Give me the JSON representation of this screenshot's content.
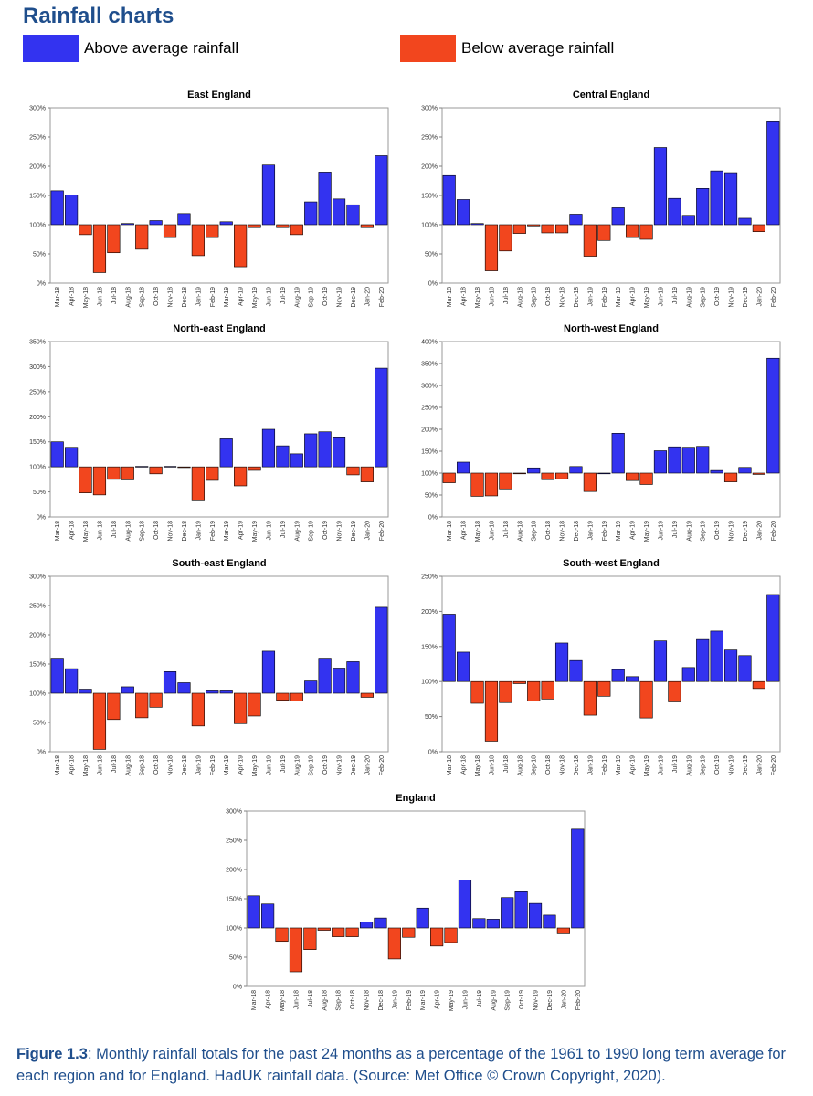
{
  "page_title": "Rainfall charts",
  "legend": {
    "above": {
      "label": "Above average rainfall",
      "color": "#3333f0"
    },
    "below": {
      "label": "Below average rainfall",
      "color": "#f2461e"
    }
  },
  "caption": {
    "prefix": "Figure 1.3",
    "text": ": Monthly rainfall totals for the past 24 months as a percentage of the 1961 to 1990 long term average for each region and for England. HadUK rainfall data. (Source: Met Office © Crown Copyright, 2020)."
  },
  "chart_data": [
    {
      "type": "bar",
      "title": "East England",
      "baseline": 100,
      "ylim": [
        0,
        300
      ],
      "yticks": [
        "0%",
        "50%",
        "100%",
        "150%",
        "200%",
        "250%",
        "300%"
      ],
      "categories": [
        "Mar-18",
        "Apr-18",
        "May-18",
        "Jun-18",
        "Jul-18",
        "Aug-18",
        "Sep-18",
        "Oct-18",
        "Nov-18",
        "Dec-18",
        "Jan-19",
        "Feb-19",
        "Mar-19",
        "Apr-19",
        "May-19",
        "Jun-19",
        "Jul-19",
        "Aug-19",
        "Sep-19",
        "Oct-19",
        "Nov-19",
        "Dec-19",
        "Jan-20",
        "Feb-20"
      ],
      "values": [
        158,
        151,
        83,
        18,
        52,
        102,
        58,
        107,
        78,
        119,
        47,
        78,
        105,
        28,
        95,
        202,
        95,
        83,
        139,
        190,
        144,
        134,
        95,
        218
      ]
    },
    {
      "type": "bar",
      "title": "Central England",
      "baseline": 100,
      "ylim": [
        0,
        300
      ],
      "yticks": [
        "0%",
        "50%",
        "100%",
        "150%",
        "200%",
        "250%",
        "300%"
      ],
      "categories": [
        "Mar-18",
        "Apr-18",
        "May-18",
        "Jun-18",
        "Jul-18",
        "Aug-18",
        "Sep-18",
        "Oct-18",
        "Nov-18",
        "Dec-18",
        "Jan-19",
        "Feb-19",
        "Mar-19",
        "Apr-19",
        "May-19",
        "Jun-19",
        "Jul-19",
        "Aug-19",
        "Sep-19",
        "Oct-19",
        "Nov-19",
        "Dec-19",
        "Jan-20",
        "Feb-20"
      ],
      "values": [
        184,
        143,
        102,
        21,
        55,
        85,
        98,
        86,
        86,
        118,
        46,
        73,
        129,
        78,
        75,
        232,
        145,
        116,
        162,
        192,
        189,
        111,
        88,
        276
      ]
    },
    {
      "type": "bar",
      "title": "North-east England",
      "baseline": 100,
      "ylim": [
        0,
        350
      ],
      "yticks": [
        "0%",
        "50%",
        "100%",
        "150%",
        "200%",
        "250%",
        "300%",
        "350%"
      ],
      "categories": [
        "Mar-18",
        "Apr-18",
        "May-18",
        "Jun-18",
        "Jul-18",
        "Aug-18",
        "Sep-18",
        "Oct-18",
        "Nov-18",
        "Dec-18",
        "Jan-19",
        "Feb-19",
        "Mar-19",
        "Apr-19",
        "May-19",
        "Jun-19",
        "Jul-19",
        "Aug-19",
        "Sep-19",
        "Oct-19",
        "Nov-19",
        "Dec-19",
        "Jan-20",
        "Feb-20"
      ],
      "values": [
        150,
        139,
        48,
        44,
        75,
        74,
        101,
        86,
        101,
        99,
        34,
        73,
        156,
        62,
        93,
        175,
        142,
        126,
        166,
        170,
        158,
        84,
        70,
        297
      ]
    },
    {
      "type": "bar",
      "title": "North-west England",
      "baseline": 100,
      "ylim": [
        0,
        400
      ],
      "yticks": [
        "0%",
        "50%",
        "100%",
        "150%",
        "200%",
        "250%",
        "300%",
        "350%",
        "400%"
      ],
      "categories": [
        "Mar-18",
        "Apr-18",
        "May-18",
        "Jun-18",
        "Jul-18",
        "Aug-18",
        "Sep-18",
        "Oct-18",
        "Nov-18",
        "Dec-18",
        "Jan-19",
        "Feb-19",
        "Mar-19",
        "Apr-19",
        "May-19",
        "Jun-19",
        "Jul-19",
        "Aug-19",
        "Sep-19",
        "Oct-19",
        "Nov-19",
        "Dec-19",
        "Jan-20",
        "Feb-20"
      ],
      "values": [
        78,
        125,
        47,
        48,
        64,
        99,
        112,
        85,
        87,
        115,
        58,
        100,
        191,
        83,
        74,
        151,
        160,
        159,
        161,
        106,
        80,
        113,
        97,
        362
      ]
    },
    {
      "type": "bar",
      "title": "South-east England",
      "baseline": 100,
      "ylim": [
        0,
        300
      ],
      "yticks": [
        "0%",
        "50%",
        "100%",
        "150%",
        "200%",
        "250%",
        "300%"
      ],
      "categories": [
        "Mar-18",
        "Apr-18",
        "May-18",
        "Jun-18",
        "Jul-18",
        "Aug-18",
        "Sep-18",
        "Oct-18",
        "Nov-18",
        "Dec-18",
        "Jan-19",
        "Feb-19",
        "Mar-19",
        "Apr-19",
        "May-19",
        "Jun-19",
        "Jul-19",
        "Aug-19",
        "Sep-19",
        "Oct-19",
        "Nov-19",
        "Dec-19",
        "Jan-20",
        "Feb-20"
      ],
      "values": [
        160,
        142,
        107,
        4,
        55,
        111,
        58,
        76,
        137,
        118,
        44,
        104,
        104,
        48,
        61,
        172,
        88,
        87,
        121,
        160,
        143,
        154,
        93,
        247
      ]
    },
    {
      "type": "bar",
      "title": "South-west England",
      "baseline": 100,
      "ylim": [
        0,
        250
      ],
      "yticks": [
        "0%",
        "50%",
        "100%",
        "150%",
        "200%",
        "250%"
      ],
      "categories": [
        "Mar-18",
        "Apr-18",
        "May-18",
        "Jun-18",
        "Jul-18",
        "Aug-18",
        "Sep-18",
        "Oct-18",
        "Nov-18",
        "Dec-18",
        "Jan-19",
        "Feb-19",
        "Mar-19",
        "Apr-19",
        "May-19",
        "Jun-19",
        "Jul-19",
        "Aug-19",
        "Sep-19",
        "Oct-19",
        "Nov-19",
        "Dec-19",
        "Jan-20",
        "Feb-20"
      ],
      "values": [
        196,
        142,
        69,
        15,
        70,
        97,
        72,
        75,
        155,
        130,
        52,
        79,
        117,
        107,
        48,
        158,
        71,
        120,
        160,
        172,
        145,
        137,
        90,
        224
      ]
    },
    {
      "type": "bar",
      "title": "England",
      "baseline": 100,
      "ylim": [
        0,
        300
      ],
      "yticks": [
        "0%",
        "50%",
        "100%",
        "150%",
        "200%",
        "250%",
        "300%"
      ],
      "categories": [
        "Mar-18",
        "Apr-18",
        "May-18",
        "Jun-18",
        "Jul-18",
        "Aug-18",
        "Sep-18",
        "Oct-18",
        "Nov-18",
        "Dec-18",
        "Jan-19",
        "Feb-19",
        "Mar-19",
        "Apr-19",
        "May-19",
        "Jun-19",
        "Jul-19",
        "Aug-19",
        "Sep-19",
        "Oct-19",
        "Nov-19",
        "Dec-19",
        "Jan-20",
        "Feb-20"
      ],
      "values": [
        155,
        141,
        77,
        25,
        63,
        96,
        85,
        85,
        110,
        117,
        47,
        84,
        134,
        69,
        75,
        182,
        116,
        115,
        152,
        162,
        142,
        122,
        90,
        269
      ]
    }
  ]
}
